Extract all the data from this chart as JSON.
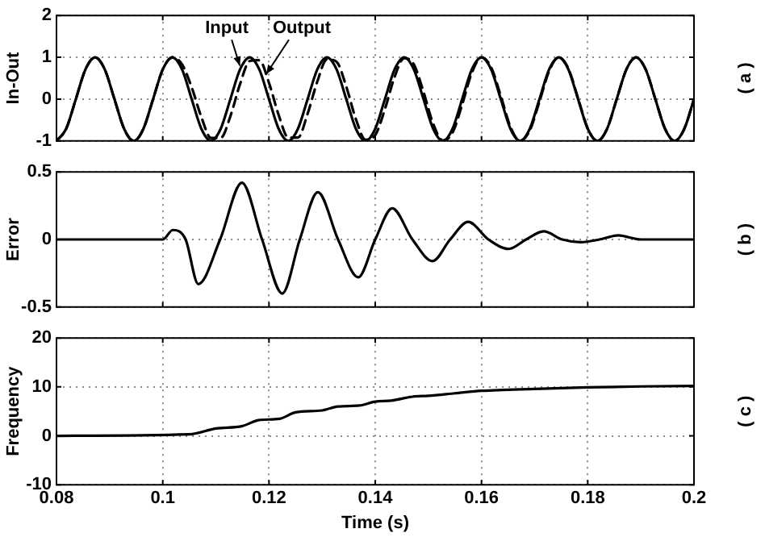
{
  "chart_data": [
    {
      "type": "line",
      "ylabel": "In-Out",
      "xlim": [
        0.08,
        0.2
      ],
      "xticks": [
        0.08,
        0.1,
        0.12,
        0.14,
        0.16,
        0.18,
        0.2
      ],
      "ylim": [
        -1,
        2
      ],
      "yticks": [
        -1,
        0,
        1,
        2
      ],
      "grid": true,
      "marker": "none",
      "tick_labels": "y",
      "x": [
        0.08,
        0.08182,
        0.08364,
        0.08545,
        0.08727,
        0.08909,
        0.09091,
        0.09273,
        0.09455,
        0.09636,
        0.09818,
        0.1,
        0.10182,
        0.10364,
        0.10545,
        0.10727,
        0.10909,
        0.11091,
        0.11273,
        0.11455,
        0.11636,
        0.11818,
        0.12,
        0.12182,
        0.12364,
        0.12545,
        0.12727,
        0.12909,
        0.13091,
        0.13273,
        0.13455,
        0.13636,
        0.13818,
        0.14,
        0.14182,
        0.14364,
        0.14545,
        0.14727,
        0.14909,
        0.15091,
        0.15273,
        0.15455,
        0.15636,
        0.15818,
        0.16,
        0.16182,
        0.16364,
        0.16545,
        0.16727,
        0.16909,
        0.17091,
        0.17273,
        0.17455,
        0.17636,
        0.17818,
        0.18,
        0.18182,
        0.18364,
        0.18545,
        0.18727,
        0.18909,
        0.19091,
        0.19273,
        0.19455,
        0.19636,
        0.19818,
        0.2
      ],
      "series": [
        {
          "color": "#000000",
          "line_style": "solid",
          "values": [
            -1,
            -0.71,
            0,
            0.71,
            1,
            0.71,
            0,
            -0.71,
            -1,
            -0.71,
            0,
            0.71,
            1,
            0.71,
            0,
            -0.71,
            -1,
            -0.71,
            0,
            0.71,
            1,
            0.71,
            0,
            -0.71,
            -1,
            -0.71,
            0,
            0.71,
            1,
            0.71,
            0,
            -0.71,
            -1,
            -0.71,
            0,
            0.71,
            1,
            0.71,
            0,
            -0.71,
            -1,
            -0.71,
            0,
            0.71,
            1,
            0.71,
            0,
            -0.71,
            -1,
            -0.71,
            0,
            0.71,
            1,
            0.71,
            0,
            -0.71,
            -1,
            -0.71,
            0,
            0.71,
            1,
            0.71,
            0,
            -0.71,
            -1,
            -0.71,
            0
          ]
        },
        {
          "color": "#000000",
          "line_style": "dashed",
          "values": [
            -1,
            -0.71,
            0,
            0.71,
            1,
            0.71,
            0,
            -0.71,
            -1,
            -0.71,
            0,
            0.71,
            1,
            0.83,
            0.28,
            -0.43,
            -0.93,
            -0.93,
            -0.41,
            0.36,
            0.91,
            0.93,
            0.39,
            -0.38,
            -0.92,
            -0.92,
            -0.35,
            0.42,
            0.95,
            0.89,
            0.3,
            -0.48,
            -0.97,
            -0.86,
            -0.24,
            0.53,
            0.98,
            0.83,
            0.17,
            -0.59,
            -0.99,
            -0.8,
            -0.13,
            0.63,
            1,
            0.76,
            0.07,
            -0.66,
            -1,
            -0.75,
            -0.06,
            0.67,
            1,
            0.73,
            0.02,
            -0.7,
            -1,
            -0.71,
            0,
            0.71,
            1,
            0.71,
            0,
            -0.71,
            -1,
            -0.71,
            0
          ]
        }
      ],
      "annotations": [
        {
          "text": "Input",
          "x": 0.1145,
          "y": 0.8
        },
        {
          "text": "Output",
          "x": 0.1195,
          "y": 0.6
        },
        "( a )"
      ]
    },
    {
      "type": "line",
      "ylabel": "Error",
      "xlim": [
        0.08,
        0.2
      ],
      "xticks": [
        0.08,
        0.1,
        0.12,
        0.14,
        0.16,
        0.18,
        0.2
      ],
      "ylim": [
        -0.5,
        0.5
      ],
      "yticks": [
        -0.5,
        0,
        0.5
      ],
      "grid": true,
      "marker": "none",
      "tick_labels": "y",
      "x": [
        0.08,
        0.1,
        0.1019,
        0.1043,
        0.1067,
        0.1108,
        0.1149,
        0.1187,
        0.1225,
        0.1258,
        0.1292,
        0.133,
        0.1368,
        0.14,
        0.1432,
        0.147,
        0.1508,
        0.1541,
        0.1575,
        0.1613,
        0.1651,
        0.1684,
        0.1717,
        0.1752,
        0.1787,
        0.1822,
        0.1857,
        0.19,
        0.2
      ],
      "series": [
        {
          "color": "#000000",
          "line_style": "solid",
          "values": [
            0,
            0,
            0.07,
            0,
            -0.33,
            0,
            0.42,
            0,
            -0.4,
            0,
            0.35,
            0,
            -0.28,
            0,
            0.23,
            0,
            -0.16,
            0,
            0.13,
            0,
            -0.07,
            0,
            0.06,
            0,
            -0.02,
            0,
            0.03,
            0,
            0
          ]
        }
      ],
      "annotations": [
        "( b )"
      ]
    },
    {
      "type": "line",
      "ylabel": "Frequency",
      "xlabel": "Time (s)",
      "xlim": [
        0.08,
        0.2
      ],
      "xticks": [
        0.08,
        0.1,
        0.12,
        0.14,
        0.16,
        0.18,
        0.2
      ],
      "ylim": [
        -10,
        20
      ],
      "yticks": [
        -10,
        0,
        10,
        20
      ],
      "grid": true,
      "marker": "none",
      "x": [
        0.08,
        0.105,
        0.11,
        0.115,
        0.118,
        0.122,
        0.125,
        0.13,
        0.133,
        0.137,
        0.14,
        0.143,
        0.147,
        0.15,
        0.155,
        0.16,
        0.17,
        0.18,
        0.19,
        0.2
      ],
      "series": [
        {
          "color": "#000000",
          "line_style": "solid",
          "values": [
            0,
            0.3,
            1.5,
            2,
            3.2,
            3.5,
            4.8,
            5.2,
            6,
            6.2,
            7,
            7.2,
            8,
            8.2,
            8.7,
            9.2,
            9.6,
            9.9,
            10.1,
            10.2
          ]
        }
      ],
      "annotations": [
        "( c )"
      ]
    }
  ]
}
